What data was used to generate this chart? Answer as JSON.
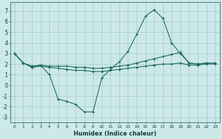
{
  "xlabel": "Humidex (Indice chaleur)",
  "bg_color": "#cce8e8",
  "grid_color": "#aacccc",
  "line_color": "#1a6b5a",
  "xlim": [
    -0.5,
    23.5
  ],
  "ylim": [
    -3.5,
    7.8
  ],
  "xticks": [
    0,
    1,
    2,
    3,
    4,
    5,
    6,
    7,
    8,
    9,
    10,
    11,
    12,
    13,
    14,
    15,
    16,
    17,
    18,
    19,
    20,
    21,
    22,
    23
  ],
  "yticks": [
    -3,
    -2,
    -1,
    0,
    1,
    2,
    3,
    4,
    5,
    6,
    7
  ],
  "line1_x": [
    0,
    1,
    2,
    3,
    4,
    5,
    6,
    7,
    8,
    9,
    10,
    11,
    12,
    13,
    14,
    15,
    16,
    17,
    18,
    19,
    20,
    21,
    22,
    23
  ],
  "line1_y": [
    3.0,
    2.1,
    1.7,
    1.9,
    1.0,
    -1.3,
    -1.5,
    -1.8,
    -2.5,
    -2.5,
    0.7,
    1.5,
    2.2,
    3.2,
    4.8,
    6.5,
    7.1,
    6.3,
    4.0,
    3.0,
    2.1,
    2.0,
    2.1,
    2.1
  ],
  "line2_x": [
    0,
    1,
    2,
    3,
    4,
    5,
    6,
    7,
    8,
    9,
    10,
    11,
    12,
    13,
    14,
    15,
    16,
    17,
    18,
    19,
    20,
    21,
    22,
    23
  ],
  "line2_y": [
    3.0,
    2.1,
    1.8,
    1.9,
    1.8,
    1.8,
    1.8,
    1.7,
    1.7,
    1.6,
    1.6,
    1.7,
    1.8,
    1.9,
    2.1,
    2.3,
    2.5,
    2.7,
    2.9,
    3.1,
    2.1,
    2.0,
    2.1,
    2.1
  ],
  "line3_x": [
    0,
    1,
    2,
    3,
    4,
    5,
    6,
    7,
    8,
    9,
    10,
    11,
    12,
    13,
    14,
    15,
    16,
    17,
    18,
    19,
    20,
    21,
    22,
    23
  ],
  "line3_y": [
    3.0,
    2.1,
    1.7,
    1.8,
    1.7,
    1.6,
    1.5,
    1.4,
    1.4,
    1.3,
    1.3,
    1.4,
    1.5,
    1.6,
    1.7,
    1.8,
    1.9,
    2.0,
    2.0,
    2.1,
    1.9,
    1.9,
    2.0,
    2.0
  ]
}
